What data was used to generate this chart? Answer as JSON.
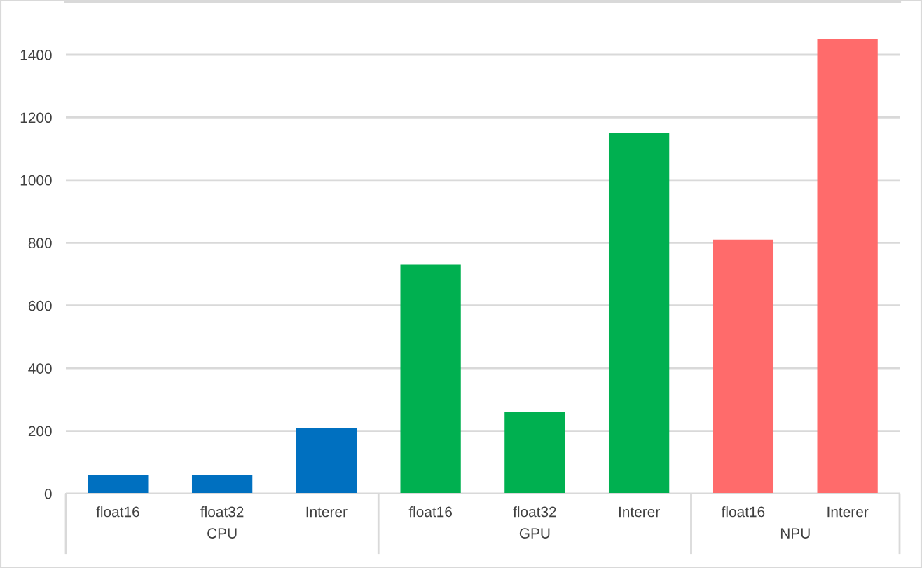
{
  "chart_data": {
    "type": "bar",
    "categories": [
      "float16",
      "float32",
      "Interer",
      "float16",
      "float32",
      "Interer",
      "float16",
      "Interer"
    ],
    "series": [
      {
        "name": "CPU",
        "color": "#0070c0",
        "values": [
          60,
          60,
          210,
          null,
          null,
          null,
          null,
          null
        ]
      },
      {
        "name": "GPU",
        "color": "#00b050",
        "values": [
          null,
          null,
          null,
          730,
          260,
          1150,
          null,
          null
        ]
      },
      {
        "name": "NPU",
        "color": "#ff6b6b",
        "values": [
          null,
          null,
          null,
          null,
          null,
          null,
          810,
          1450
        ]
      }
    ],
    "ylim": [
      0,
      1570
    ],
    "yticks": [
      0,
      200,
      400,
      600,
      800,
      1000,
      1200,
      1400
    ],
    "grid": "y"
  }
}
